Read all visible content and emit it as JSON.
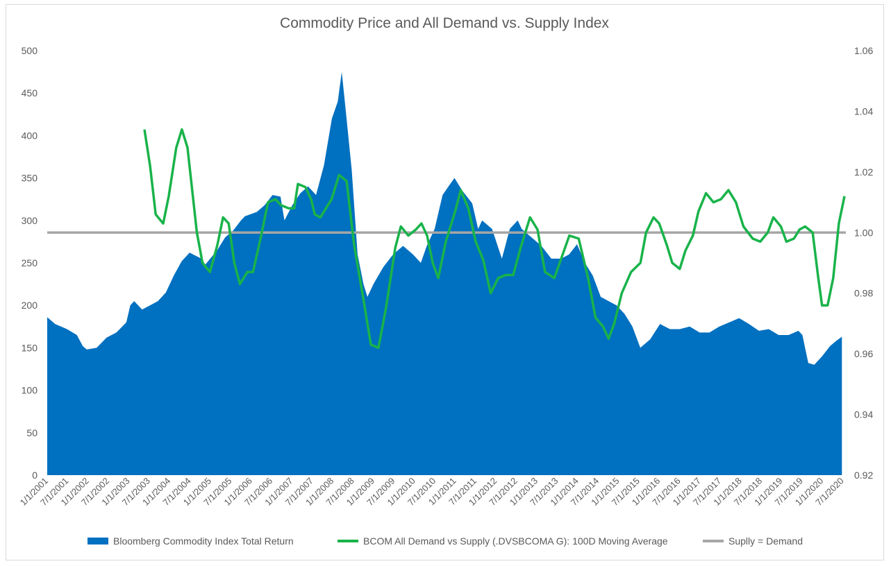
{
  "chart_data": {
    "type": "area",
    "title": "Commodity Price and All Demand vs. Supply Index",
    "x_tick_labels": [
      "1/1/2001",
      "7/1/2001",
      "1/1/2002",
      "7/1/2002",
      "1/1/2003",
      "7/1/2003",
      "1/1/2004",
      "7/1/2004",
      "1/1/2005",
      "7/1/2005",
      "1/1/2006",
      "7/1/2006",
      "1/1/2007",
      "7/1/2007",
      "1/1/2008",
      "7/1/2008",
      "1/1/2009",
      "7/1/2009",
      "1/1/2010",
      "7/1/2010",
      "1/1/2011",
      "7/1/2011",
      "1/1/2012",
      "7/1/2012",
      "1/1/2013",
      "7/1/2013",
      "1/1/2014",
      "7/1/2014",
      "1/1/2015",
      "7/1/2015",
      "1/1/2016",
      "7/1/2016",
      "1/1/2017",
      "7/1/2017",
      "1/1/2018",
      "7/1/2018",
      "1/1/2019",
      "7/1/2019",
      "1/1/2020",
      "7/1/2020"
    ],
    "y_left": {
      "min": 0,
      "max": 500,
      "ticks": [
        "0",
        "50",
        "100",
        "150",
        "200",
        "250",
        "300",
        "350",
        "400",
        "450",
        "500"
      ]
    },
    "y_right": {
      "min": 0.92,
      "max": 1.06,
      "ticks": [
        "0.92",
        "0.94",
        "0.96",
        "0.98",
        "1.00",
        "1.02",
        "1.04",
        "1.06"
      ]
    },
    "grid": false,
    "legend_position": "bottom",
    "series": [
      {
        "name": "Bloomberg Commodity Index Total Return",
        "kind": "area",
        "axis": "left",
        "color": "#0070c0",
        "points": [
          [
            2001.0,
            186
          ],
          [
            2001.2,
            178
          ],
          [
            2001.5,
            172
          ],
          [
            2001.75,
            165
          ],
          [
            2001.9,
            152
          ],
          [
            2002.0,
            148
          ],
          [
            2002.25,
            150
          ],
          [
            2002.5,
            162
          ],
          [
            2002.75,
            168
          ],
          [
            2003.0,
            180
          ],
          [
            2003.1,
            200
          ],
          [
            2003.2,
            205
          ],
          [
            2003.4,
            195
          ],
          [
            2003.6,
            200
          ],
          [
            2003.8,
            205
          ],
          [
            2004.0,
            215
          ],
          [
            2004.2,
            235
          ],
          [
            2004.4,
            252
          ],
          [
            2004.6,
            262
          ],
          [
            2004.9,
            255
          ],
          [
            2005.0,
            248
          ],
          [
            2005.3,
            265
          ],
          [
            2005.5,
            280
          ],
          [
            2005.7,
            288
          ],
          [
            2005.9,
            300
          ],
          [
            2006.0,
            305
          ],
          [
            2006.3,
            310
          ],
          [
            2006.5,
            318
          ],
          [
            2006.7,
            330
          ],
          [
            2006.9,
            328
          ],
          [
            2007.0,
            300
          ],
          [
            2007.2,
            318
          ],
          [
            2007.4,
            332
          ],
          [
            2007.6,
            340
          ],
          [
            2007.8,
            330
          ],
          [
            2008.0,
            365
          ],
          [
            2008.2,
            420
          ],
          [
            2008.35,
            440
          ],
          [
            2008.45,
            475
          ],
          [
            2008.55,
            430
          ],
          [
            2008.7,
            360
          ],
          [
            2008.85,
            260
          ],
          [
            2009.0,
            225
          ],
          [
            2009.1,
            210
          ],
          [
            2009.25,
            225
          ],
          [
            2009.5,
            245
          ],
          [
            2009.75,
            260
          ],
          [
            2010.0,
            270
          ],
          [
            2010.25,
            260
          ],
          [
            2010.45,
            250
          ],
          [
            2010.6,
            270
          ],
          [
            2010.8,
            290
          ],
          [
            2011.0,
            330
          ],
          [
            2011.15,
            340
          ],
          [
            2011.3,
            350
          ],
          [
            2011.5,
            335
          ],
          [
            2011.75,
            320
          ],
          [
            2011.9,
            290
          ],
          [
            2012.0,
            300
          ],
          [
            2012.25,
            290
          ],
          [
            2012.5,
            255
          ],
          [
            2012.7,
            290
          ],
          [
            2012.9,
            300
          ],
          [
            2013.0,
            290
          ],
          [
            2013.25,
            280
          ],
          [
            2013.5,
            270
          ],
          [
            2013.75,
            255
          ],
          [
            2014.0,
            255
          ],
          [
            2014.2,
            260
          ],
          [
            2014.4,
            272
          ],
          [
            2014.6,
            250
          ],
          [
            2014.8,
            235
          ],
          [
            2015.0,
            210
          ],
          [
            2015.2,
            205
          ],
          [
            2015.4,
            200
          ],
          [
            2015.6,
            190
          ],
          [
            2015.8,
            175
          ],
          [
            2016.0,
            150
          ],
          [
            2016.25,
            160
          ],
          [
            2016.5,
            178
          ],
          [
            2016.75,
            172
          ],
          [
            2017.0,
            172
          ],
          [
            2017.25,
            175
          ],
          [
            2017.5,
            168
          ],
          [
            2017.75,
            168
          ],
          [
            2018.0,
            175
          ],
          [
            2018.25,
            180
          ],
          [
            2018.5,
            185
          ],
          [
            2018.75,
            178
          ],
          [
            2019.0,
            170
          ],
          [
            2019.25,
            172
          ],
          [
            2019.5,
            165
          ],
          [
            2019.75,
            165
          ],
          [
            2020.0,
            170
          ],
          [
            2020.1,
            165
          ],
          [
            2020.25,
            132
          ],
          [
            2020.4,
            130
          ],
          [
            2020.6,
            140
          ],
          [
            2020.8,
            152
          ],
          [
            2020.95,
            158
          ],
          [
            2021.1,
            163
          ]
        ]
      },
      {
        "name": "BCOM All Demand vs Supply (.DVSBCOMA G): 100D Moving Average",
        "kind": "line",
        "axis": "right",
        "color": "#19b34a",
        "points": [
          [
            2003.45,
            1.034
          ],
          [
            2003.6,
            1.022
          ],
          [
            2003.75,
            1.006
          ],
          [
            2003.95,
            1.003
          ],
          [
            2004.1,
            1.012
          ],
          [
            2004.3,
            1.028
          ],
          [
            2004.45,
            1.034
          ],
          [
            2004.6,
            1.028
          ],
          [
            2004.85,
            1.0
          ],
          [
            2005.0,
            0.99
          ],
          [
            2005.2,
            0.987
          ],
          [
            2005.4,
            0.996
          ],
          [
            2005.55,
            1.005
          ],
          [
            2005.7,
            1.003
          ],
          [
            2005.85,
            0.99
          ],
          [
            2006.0,
            0.983
          ],
          [
            2006.2,
            0.987
          ],
          [
            2006.35,
            0.987
          ],
          [
            2006.55,
            0.998
          ],
          [
            2006.75,
            1.01
          ],
          [
            2006.95,
            1.011
          ],
          [
            2007.1,
            1.009
          ],
          [
            2007.3,
            1.008
          ],
          [
            2007.45,
            1.008
          ],
          [
            2007.55,
            1.016
          ],
          [
            2007.75,
            1.015
          ],
          [
            2007.9,
            1.011
          ],
          [
            2008.0,
            1.006
          ],
          [
            2008.15,
            1.005
          ],
          [
            2008.3,
            1.008
          ],
          [
            2008.45,
            1.011
          ],
          [
            2008.65,
            1.019
          ],
          [
            2008.85,
            1.017
          ],
          [
            2009.05,
            0.996
          ],
          [
            2009.3,
            0.978
          ],
          [
            2009.5,
            0.963
          ],
          [
            2009.7,
            0.962
          ],
          [
            2009.9,
            0.975
          ],
          [
            2010.15,
            0.995
          ],
          [
            2010.3,
            1.002
          ],
          [
            2010.5,
            0.999
          ],
          [
            2010.7,
            1.001
          ],
          [
            2010.85,
            1.003
          ],
          [
            2011.0,
            0.999
          ],
          [
            2011.15,
            0.99
          ],
          [
            2011.3,
            0.985
          ],
          [
            2011.5,
            0.997
          ],
          [
            2011.75,
            1.007
          ],
          [
            2011.9,
            1.014
          ],
          [
            2012.1,
            1.008
          ],
          [
            2012.3,
            0.997
          ],
          [
            2012.5,
            0.991
          ],
          [
            2012.7,
            0.98
          ],
          [
            2012.9,
            0.985
          ],
          [
            2013.1,
            0.986
          ],
          [
            2013.3,
            0.986
          ],
          [
            2013.5,
            0.995
          ],
          [
            2013.75,
            1.005
          ],
          [
            2013.95,
            1.001
          ],
          [
            2014.15,
            0.987
          ],
          [
            2014.4,
            0.985
          ],
          [
            2014.6,
            0.992
          ],
          [
            2014.8,
            0.999
          ],
          [
            2015.05,
            0.998
          ],
          [
            2015.3,
            0.985
          ],
          [
            2015.5,
            0.972
          ],
          [
            2015.7,
            0.969
          ],
          [
            2015.85,
            0.965
          ],
          [
            2016.0,
            0.97
          ],
          [
            2016.2,
            0.98
          ],
          [
            2016.45,
            0.987
          ],
          [
            2016.7,
            0.99
          ],
          [
            2016.85,
            1.0
          ],
          [
            2017.05,
            1.005
          ],
          [
            2017.2,
            1.003
          ],
          [
            2017.4,
            0.996
          ],
          [
            2017.55,
            0.99
          ],
          [
            2017.75,
            0.988
          ],
          [
            2017.9,
            0.994
          ],
          [
            2018.1,
            0.999
          ],
          [
            2018.25,
            1.007
          ],
          [
            2018.45,
            1.013
          ],
          [
            2018.65,
            1.01
          ],
          [
            2018.85,
            1.011
          ],
          [
            2019.05,
            1.014
          ],
          [
            2019.25,
            1.01
          ],
          [
            2019.45,
            1.002
          ],
          [
            2019.7,
            0.998
          ],
          [
            2019.9,
            0.997
          ],
          [
            2020.1,
            1.0
          ],
          [
            2020.25,
            1.005
          ],
          [
            2020.45,
            1.002
          ],
          [
            2020.6,
            0.997
          ],
          [
            2020.8,
            0.998
          ],
          [
            2020.95,
            1.001
          ],
          [
            2021.1,
            1.002
          ],
          [
            2021.3,
            1.0
          ],
          [
            2021.45,
            0.985
          ],
          [
            2021.55,
            0.976
          ],
          [
            2021.7,
            0.976
          ],
          [
            2021.85,
            0.985
          ],
          [
            2022.0,
            1.003
          ],
          [
            2022.15,
            1.012
          ]
        ]
      },
      {
        "name": "Suplly = Demand",
        "kind": "hline",
        "axis": "right",
        "color": "#a6a6a6",
        "value": 1.0
      }
    ]
  }
}
